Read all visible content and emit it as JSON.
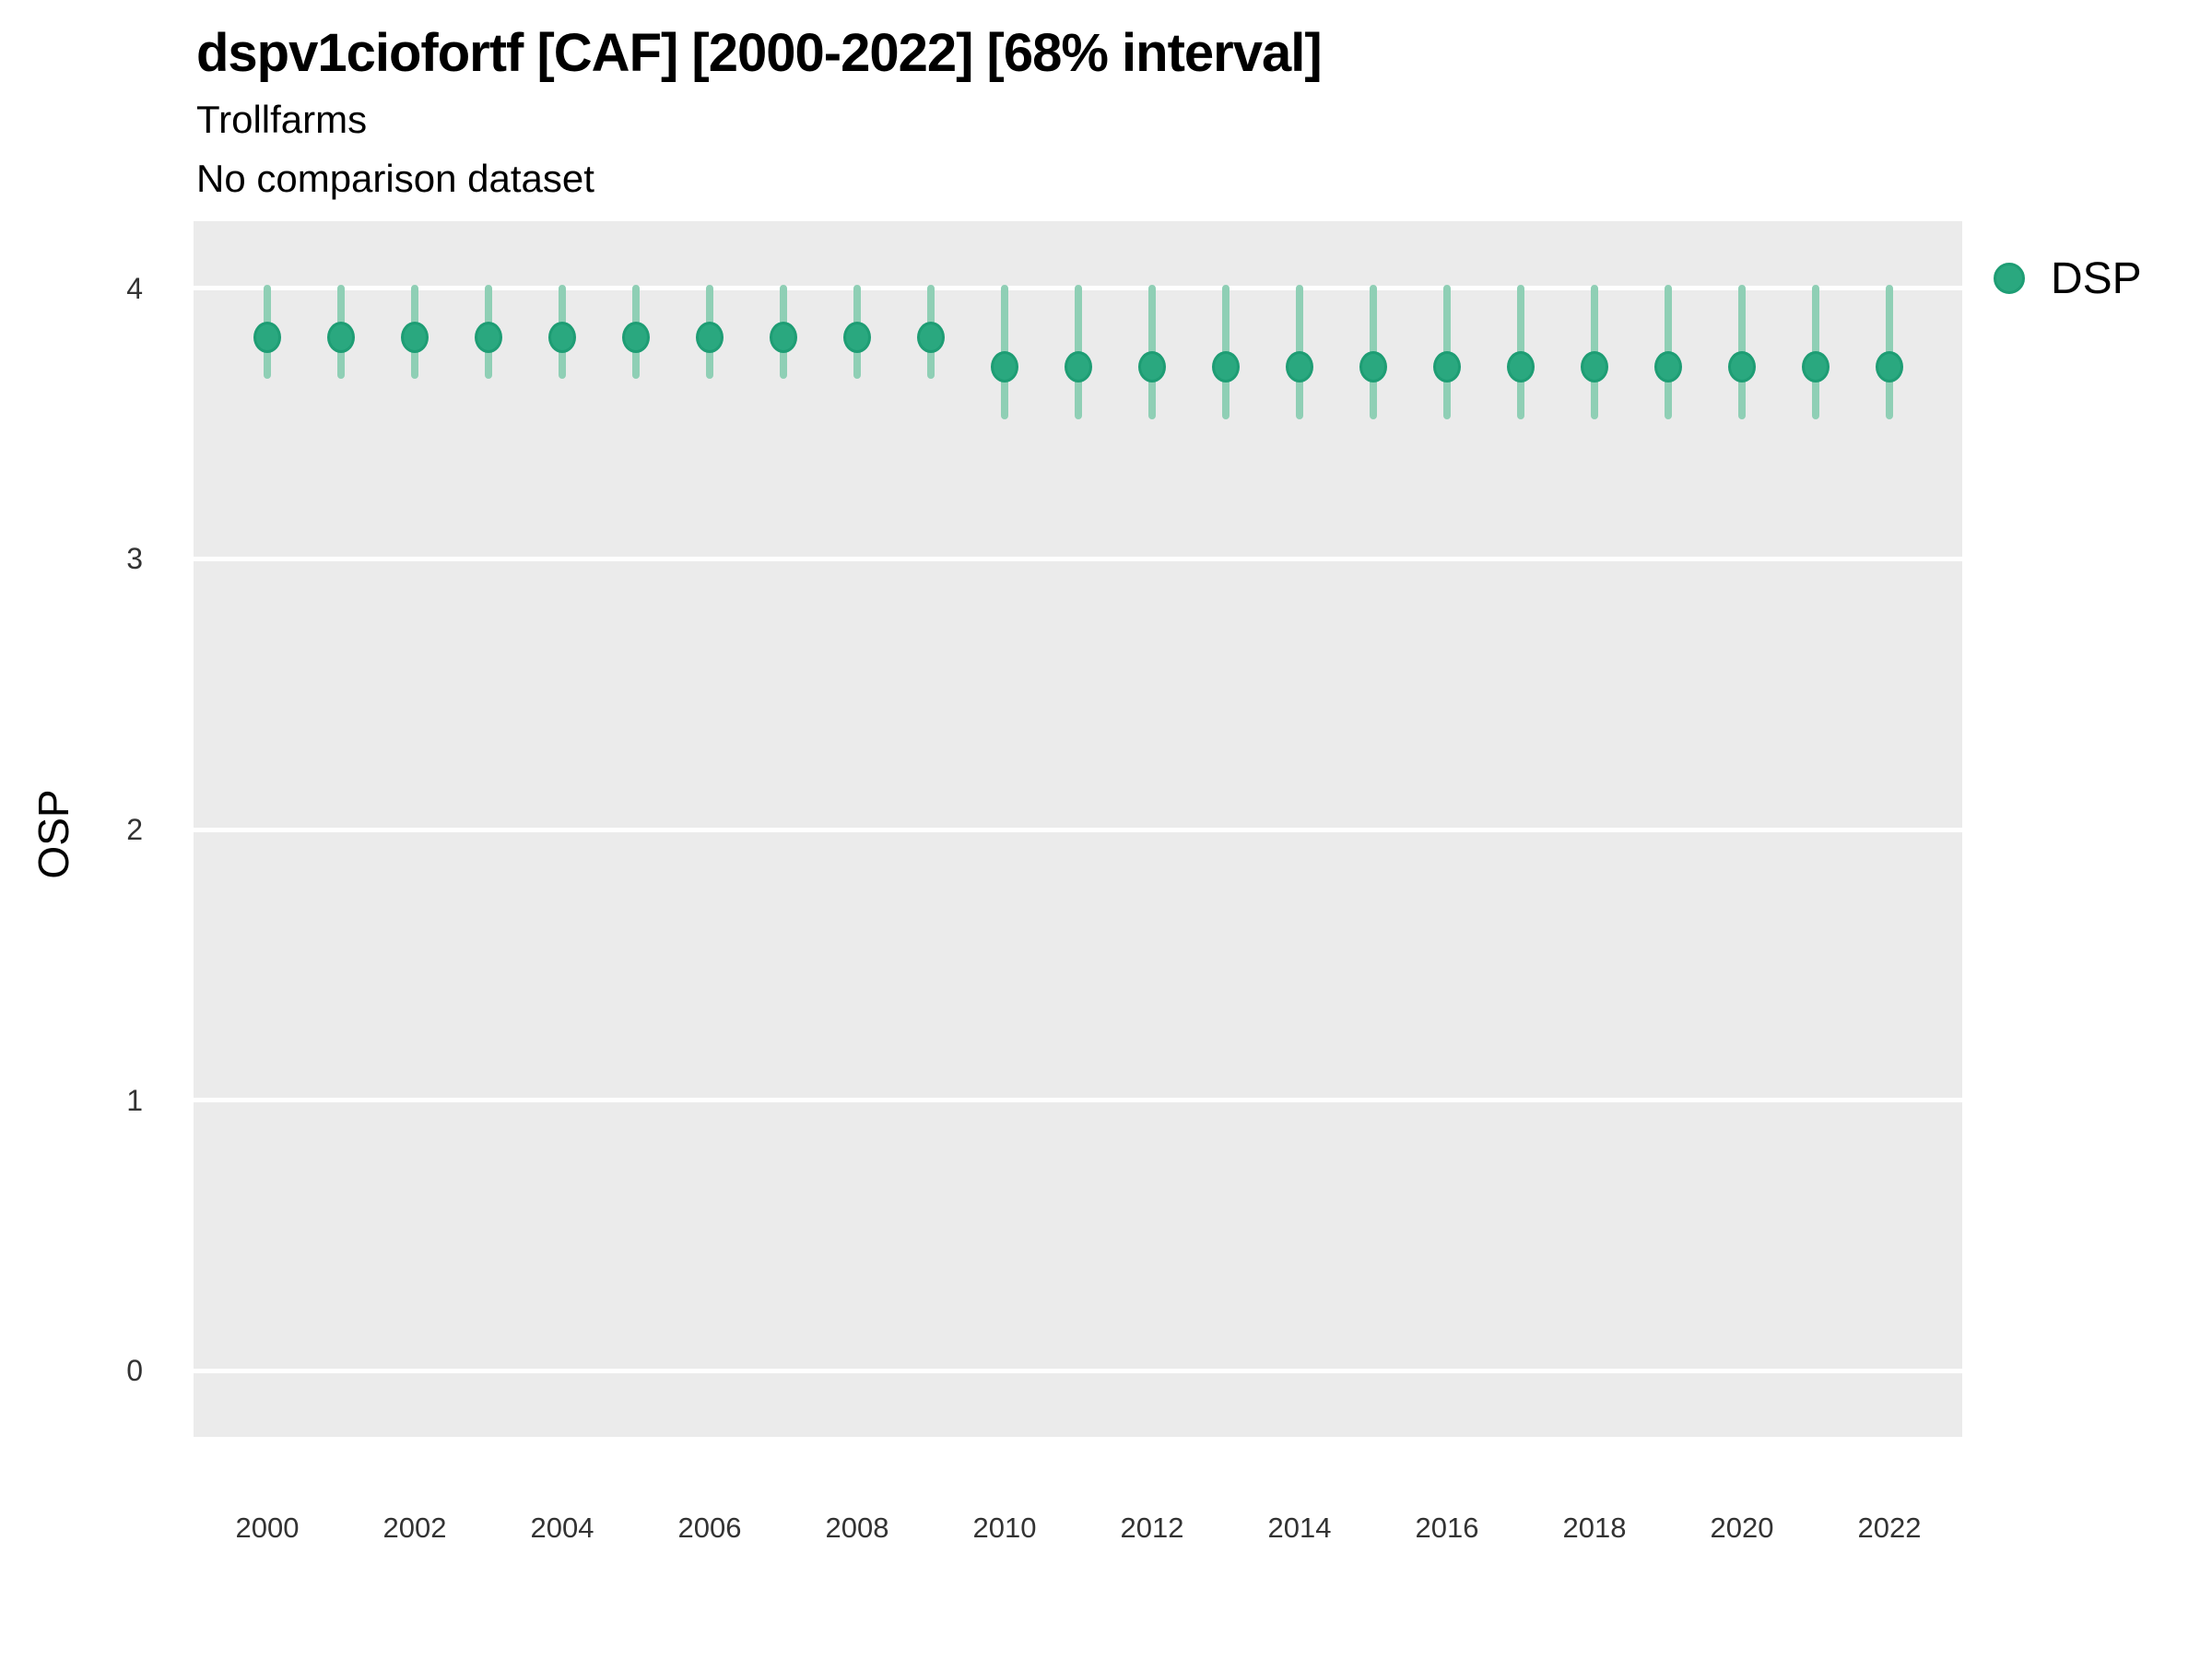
{
  "chart": {
    "title": "dspv1ciofortf [CAF] [2000-2022] [68% interval]",
    "subtitle1": "Trollfarms",
    "subtitle2": "No comparison dataset",
    "ylabel": "OSP",
    "legend": {
      "label": "DSP"
    }
  },
  "chart_data": {
    "type": "scatter",
    "title": "dspv1ciofortf [CAF] [2000-2022] [68% interval]",
    "subtitle": [
      "Trollfarms",
      "No comparison dataset"
    ],
    "xlabel": "",
    "ylabel": "OSP",
    "interval": "68%",
    "legend_position": "right",
    "grid": "major horizontal white lines on grey panel, no minor grid, no tick marks",
    "ylim": [
      -0.25,
      4.25
    ],
    "yticks": [
      4,
      3,
      2,
      1,
      0
    ],
    "xticks": [
      2000,
      2002,
      2004,
      2006,
      2008,
      2010,
      2012,
      2014,
      2016,
      2018,
      2020,
      2022
    ],
    "x": [
      2000,
      2001,
      2002,
      2003,
      2004,
      2005,
      2006,
      2007,
      2008,
      2009,
      2010,
      2011,
      2012,
      2013,
      2014,
      2015,
      2016,
      2017,
      2018,
      2019,
      2020,
      2021,
      2022
    ],
    "series": [
      {
        "name": "DSP",
        "values": [
          3.82,
          3.82,
          3.82,
          3.82,
          3.82,
          3.82,
          3.82,
          3.82,
          3.82,
          3.82,
          3.71,
          3.71,
          3.71,
          3.71,
          3.71,
          3.71,
          3.71,
          3.71,
          3.71,
          3.71,
          3.71,
          3.71,
          3.71
        ],
        "lower_68": [
          3.68,
          3.68,
          3.68,
          3.68,
          3.68,
          3.68,
          3.68,
          3.68,
          3.68,
          3.68,
          3.53,
          3.53,
          3.53,
          3.53,
          3.53,
          3.53,
          3.53,
          3.53,
          3.53,
          3.53,
          3.53,
          3.53,
          3.53
        ],
        "upper_68": [
          4.0,
          4.0,
          4.0,
          4.0,
          4.0,
          4.0,
          4.0,
          4.0,
          4.0,
          4.0,
          4.0,
          4.0,
          4.0,
          4.0,
          4.0,
          4.0,
          4.0,
          4.0,
          4.0,
          4.0,
          4.0,
          4.0,
          4.0
        ]
      }
    ],
    "colors": {
      "point_fill": "#2AA87F",
      "point_border": "#1E9D74",
      "interval_bar": "#8FCFB5",
      "panel_background": "#EBEBEB",
      "grid_line": "#FFFFFF",
      "title_text": "#000000",
      "tick_text": "#333333"
    }
  }
}
